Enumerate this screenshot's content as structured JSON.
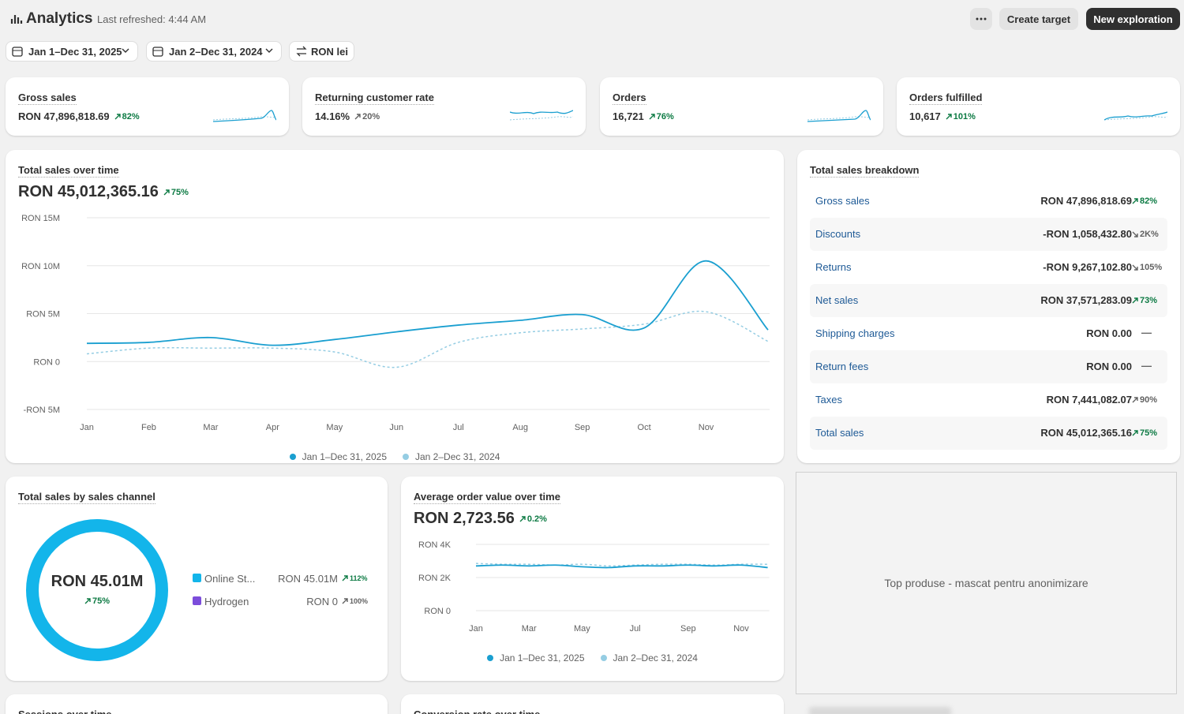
{
  "header": {
    "title": "Analytics",
    "last_refreshed": "Last refreshed: 4:44 AM",
    "buttons": [
      "Create target",
      "New exploration"
    ]
  },
  "filters": [
    "Jan 1–Dec 31, 2025",
    "Jan 2–Dec 31, 2024",
    "RON lei"
  ],
  "kpis": [
    {
      "label": "Gross sales",
      "value": "RON 47,896,818.69",
      "change": "82%",
      "trend": "up",
      "tone": "positive"
    },
    {
      "label": "Returning customer rate",
      "value": "14.16%",
      "change": "20%",
      "trend": "up",
      "tone": "neutral"
    },
    {
      "label": "Orders",
      "value": "16,721",
      "change": "76%",
      "trend": "up",
      "tone": "positive"
    },
    {
      "label": "Orders fulfilled",
      "value": "10,617",
      "change": "101%",
      "trend": "up",
      "tone": "positive"
    }
  ],
  "chart_data": [
    {
      "type": "line",
      "title": "Total sales over time",
      "headline": "RON 45,012,365.16",
      "change": "75%",
      "categories": [
        "Jan",
        "Feb",
        "Mar",
        "Apr",
        "May",
        "Jun",
        "Jul",
        "Aug",
        "Sep",
        "Oct",
        "Nov",
        null
      ],
      "series": [
        {
          "name": "Jan 1–Dec 31, 2025",
          "color": "#1a9fd0",
          "style": "solid",
          "values": [
            1900000,
            2000000,
            2500000,
            1700000,
            2300000,
            3100000,
            3800000,
            4300000,
            4900000,
            3500000,
            10500000,
            3300000
          ]
        },
        {
          "name": "Jan 2–Dec 31, 2024",
          "color": "#95cde3",
          "style": "dashed",
          "values": [
            800000,
            1400000,
            1400000,
            1400000,
            1000000,
            -600000,
            2000000,
            3000000,
            3400000,
            3900000,
            5200000,
            2100000
          ]
        }
      ],
      "ylim": [
        -5000000,
        15000000
      ],
      "yticks": [
        {
          "value": -5000000,
          "label": "-RON 5M"
        },
        {
          "value": 0,
          "label": "RON 0"
        },
        {
          "value": 5000000,
          "label": "RON 5M"
        },
        {
          "value": 10000000,
          "label": "RON 10M"
        },
        {
          "value": 15000000,
          "label": "RON 15M"
        }
      ],
      "grid": true
    },
    {
      "type": "pie",
      "title": "Total sales by sales channel",
      "center_label": "RON 45.01M",
      "change": "75%",
      "categories": [
        "Online St...",
        "Hydrogen"
      ],
      "values": [
        45.01,
        0
      ],
      "value_labels": [
        "RON 45.01M",
        "RON 0"
      ],
      "changes": [
        "112%",
        "100%"
      ],
      "change_tones": [
        "positive",
        "neutral"
      ],
      "colors": [
        "#13b5ea",
        "#7c4ddb"
      ]
    },
    {
      "type": "line",
      "title": "Average order value over time",
      "headline": "RON 2,723.56",
      "change": "0.2%",
      "categories": [
        "Jan",
        null,
        "Mar",
        null,
        "May",
        null,
        "Jul",
        null,
        "Sep",
        null,
        "Nov",
        null
      ],
      "series": [
        {
          "name": "Jan 1–Dec 31, 2025",
          "color": "#1a9fd0",
          "style": "solid",
          "values": [
            2700,
            2750,
            2700,
            2750,
            2650,
            2600,
            2700,
            2700,
            2750,
            2700,
            2750,
            2600
          ]
        },
        {
          "name": "Jan 2–Dec 31, 2024",
          "color": "#95cde3",
          "style": "dashed",
          "values": [
            2850,
            2800,
            2800,
            2750,
            2800,
            2700,
            2750,
            2800,
            2800,
            2750,
            2800,
            2800
          ]
        }
      ],
      "ylim": [
        0,
        4000
      ],
      "yticks": [
        {
          "value": 0,
          "label": "RON 0"
        },
        {
          "value": 2000,
          "label": "RON 2K"
        },
        {
          "value": 4000,
          "label": "RON 4K"
        }
      ],
      "grid": true
    }
  ],
  "breakdown": {
    "title": "Total sales breakdown",
    "rows": [
      {
        "label": "Gross sales",
        "value": "RON 47,896,818.69",
        "change": "82%",
        "trend": "up",
        "tone": "positive"
      },
      {
        "label": "Discounts",
        "value": "-RON 1,058,432.80",
        "change": "2K%",
        "trend": "down",
        "tone": "neutral"
      },
      {
        "label": "Returns",
        "value": "-RON 9,267,102.80",
        "change": "105%",
        "trend": "down",
        "tone": "neutral"
      },
      {
        "label": "Net sales",
        "value": "RON 37,571,283.09",
        "change": "73%",
        "trend": "up",
        "tone": "positive"
      },
      {
        "label": "Shipping charges",
        "value": "RON 0.00",
        "change": "—",
        "trend": "none",
        "tone": "neutral"
      },
      {
        "label": "Return fees",
        "value": "RON 0.00",
        "change": "—",
        "trend": "none",
        "tone": "neutral"
      },
      {
        "label": "Taxes",
        "value": "RON 7,441,082.07",
        "change": "90%",
        "trend": "up",
        "tone": "neutral"
      },
      {
        "label": "Total sales",
        "value": "RON 45,012,365.16",
        "change": "75%",
        "trend": "up",
        "tone": "positive"
      }
    ]
  },
  "top_products": {
    "text": "Top produse - mascat pentru anonimizare"
  },
  "more_cards": [
    "Sessions over time",
    "Conversion rate over time"
  ]
}
